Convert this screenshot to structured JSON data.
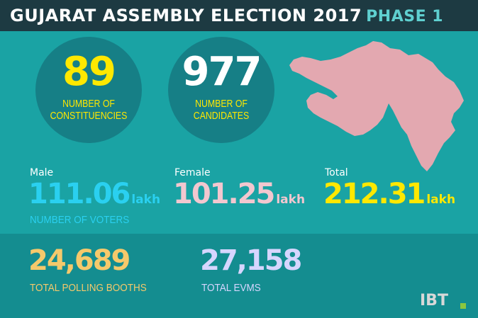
{
  "header": {
    "title": "GUJARAT ASSEMBLY ELECTION 2017",
    "phase": "PHASE 1"
  },
  "constituencies": {
    "value": "89",
    "caption_line1": "NUMBER OF",
    "caption_line2": "CONSTITUENCIES"
  },
  "candidates": {
    "value": "977",
    "caption_line1": "NUMBER OF",
    "caption_line2": "CANDIDATES"
  },
  "voters": {
    "male": {
      "label": "Male",
      "value": "111.06",
      "unit": "lakh"
    },
    "female": {
      "label": "Female",
      "value": "101.25",
      "unit": "lakh"
    },
    "total": {
      "label": "Total",
      "value": "212.31",
      "unit": "lakh"
    },
    "caption": "NUMBER OF VOTERS"
  },
  "booths": {
    "value": "24,689",
    "caption": "TOTAL POLLING BOOTHS"
  },
  "evms": {
    "value": "27,158",
    "caption": "TOTAL EVMS"
  },
  "logo": {
    "text": "IBT"
  },
  "colors": {
    "background": "#1aa4a4",
    "header_bg": "#1d3a42",
    "yellow": "#ffe800",
    "cyan": "#2ad0f0",
    "pink": "#f3c7cf",
    "orange": "#f5c96b",
    "lavender": "#d6d6ff",
    "map": "#e3a8b0"
  }
}
